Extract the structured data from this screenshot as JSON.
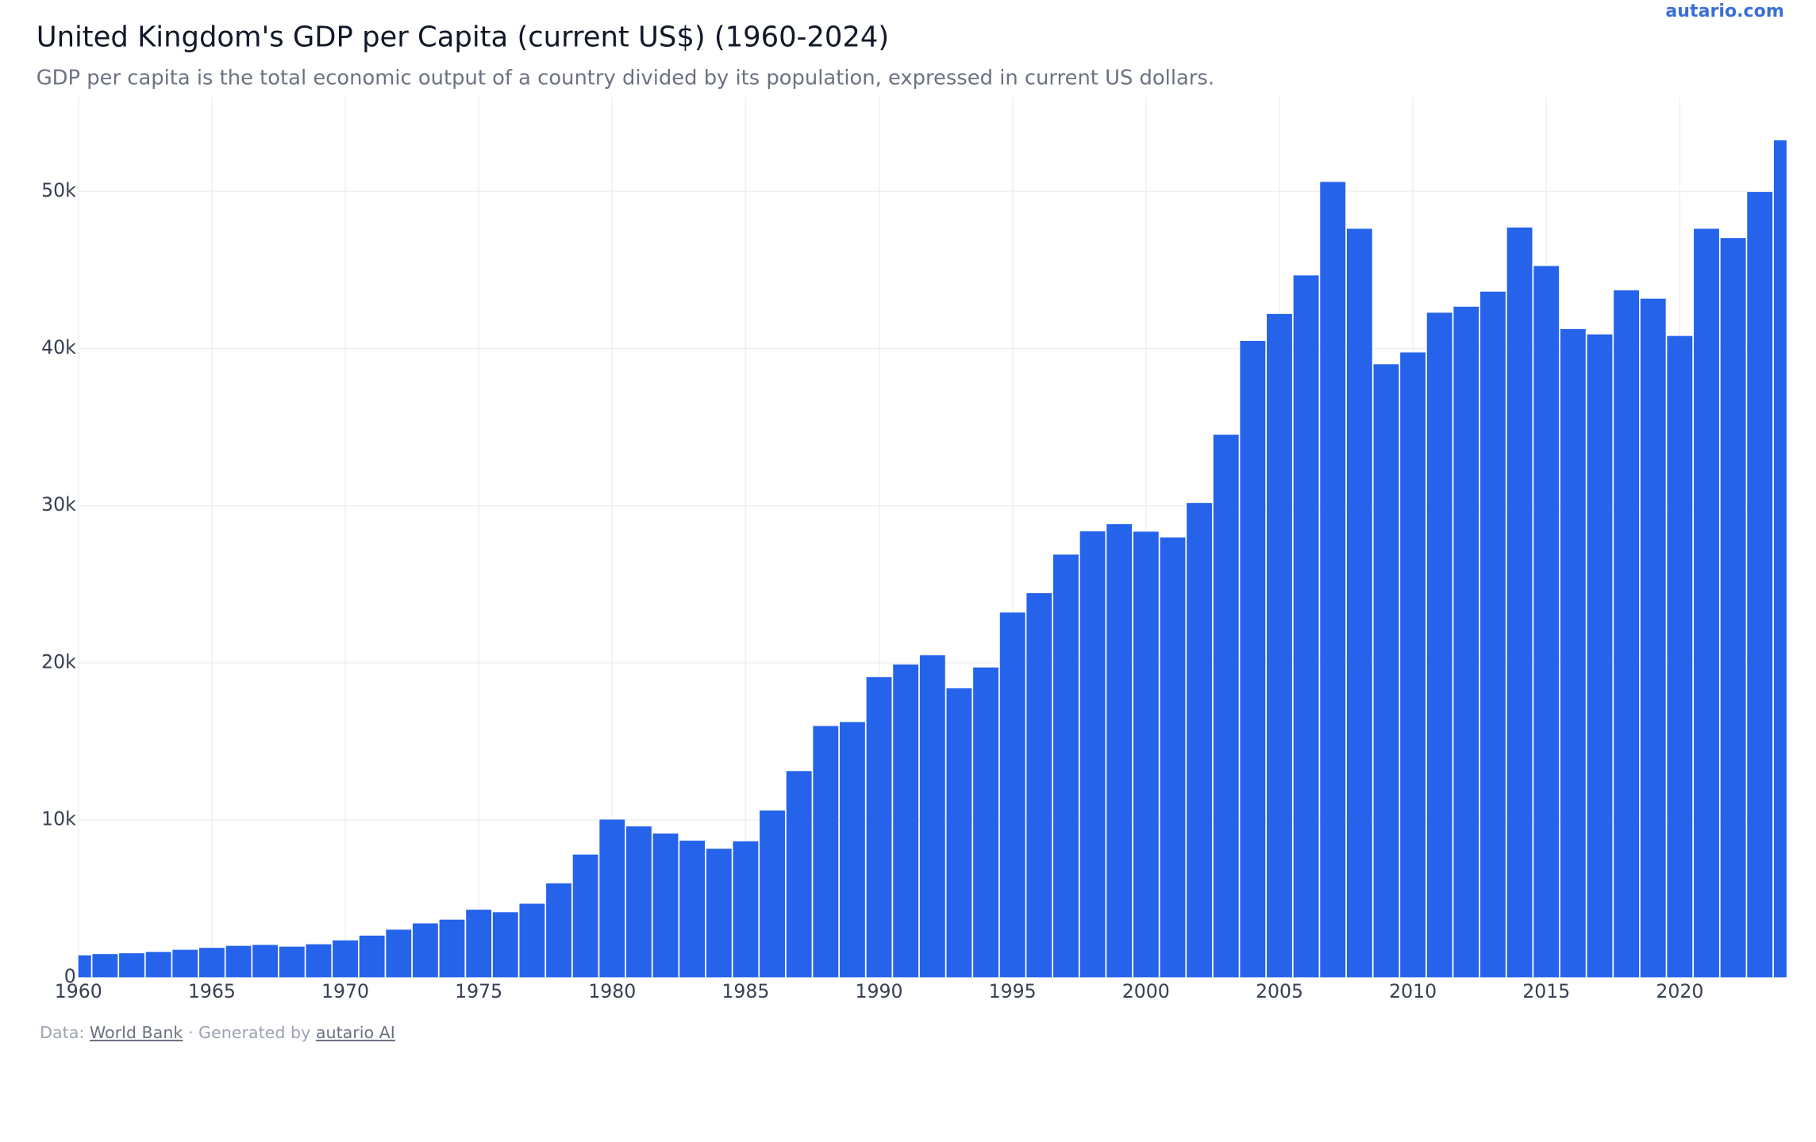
{
  "brand": "autario.com",
  "footer": {
    "prefix": "Data:",
    "source": "World Bank",
    "middle": "· Generated by",
    "generator": "autario AI"
  },
  "chart_data": {
    "type": "bar",
    "title": "United Kingdom's GDP per Capita (current US$) (1960-2024)",
    "subtitle": "GDP per capita is the total economic output of a country divided by its population, expressed in current US dollars.",
    "x": [
      1960,
      1961,
      1962,
      1963,
      1964,
      1965,
      1966,
      1967,
      1968,
      1969,
      1970,
      1971,
      1972,
      1973,
      1974,
      1975,
      1976,
      1977,
      1978,
      1979,
      1980,
      1981,
      1982,
      1983,
      1984,
      1985,
      1986,
      1987,
      1988,
      1989,
      1990,
      1991,
      1992,
      1993,
      1994,
      1995,
      1996,
      1997,
      1998,
      1999,
      2000,
      2001,
      2002,
      2003,
      2004,
      2005,
      2006,
      2007,
      2008,
      2009,
      2010,
      2011,
      2012,
      2013,
      2014,
      2015,
      2016,
      2017,
      2018,
      2019,
      2020,
      2021,
      2022,
      2023,
      2024
    ],
    "values": [
      1397,
      1472,
      1526,
      1613,
      1749,
      1873,
      2000,
      2059,
      1950,
      2100,
      2348,
      2650,
      3030,
      3426,
      3665,
      4300,
      4138,
      4681,
      5977,
      7804,
      10032,
      9599,
      9146,
      8692,
      8179,
      8652,
      10611,
      13118,
      15987,
      16239,
      19095,
      19900,
      20487,
      18389,
      19709,
      23205,
      24437,
      26890,
      28369,
      28826,
      28350,
      27985,
      30178,
      34520,
      40480,
      42200,
      44650,
      50600,
      47620,
      39000,
      39750,
      42280,
      42660,
      43620,
      47700,
      45250,
      41240,
      40900,
      43700,
      43170,
      40800,
      47620,
      47030,
      49960,
      53250
    ],
    "color": "#2563eb",
    "xlim": [
      1960,
      2024
    ],
    "xticks": [
      1960,
      1965,
      1970,
      1975,
      1980,
      1985,
      1990,
      1995,
      2000,
      2005,
      2010,
      2015,
      2020
    ],
    "ylim": [
      0,
      56000
    ],
    "yticks": [
      0,
      {
        "value": 10000,
        "label": "10k"
      },
      {
        "value": 20000,
        "label": "20k"
      },
      {
        "value": 30000,
        "label": "30k"
      },
      {
        "value": 40000,
        "label": "40k"
      },
      {
        "value": 50000,
        "label": "50k"
      }
    ],
    "grid": true
  }
}
